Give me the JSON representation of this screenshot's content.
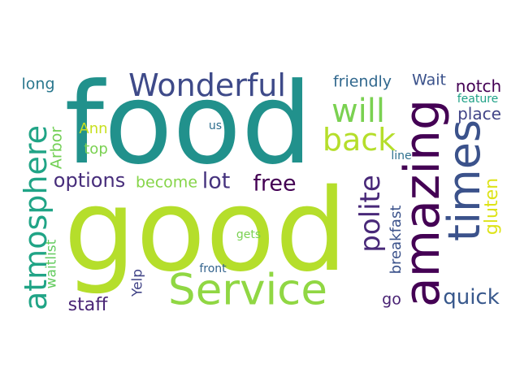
{
  "words": [
    {
      "id": "food",
      "text": "food",
      "color": "#21918c"
    },
    {
      "id": "good",
      "text": "good",
      "color": "#b5de2b"
    },
    {
      "id": "service",
      "text": "Service",
      "color": "#90d743"
    },
    {
      "id": "amazing",
      "text": "amazing",
      "color": "#440154"
    },
    {
      "id": "times",
      "text": "times",
      "color": "#3b528b"
    },
    {
      "id": "wonderful",
      "text": "Wonderful",
      "color": "#3e4a89"
    },
    {
      "id": "will",
      "text": "will",
      "color": "#7ad151"
    },
    {
      "id": "back",
      "text": "back",
      "color": "#b5de2b"
    },
    {
      "id": "atmosphere",
      "text": "atmosphere",
      "color": "#20a486"
    },
    {
      "id": "polite",
      "text": "polite",
      "color": "#482878"
    },
    {
      "id": "options",
      "text": "options",
      "color": "#472d7b"
    },
    {
      "id": "lot",
      "text": "lot",
      "color": "#46337e"
    },
    {
      "id": "free",
      "text": "free",
      "color": "#440154"
    },
    {
      "id": "quick",
      "text": "quick",
      "color": "#38588c"
    },
    {
      "id": "staff",
      "text": "staff",
      "color": "#482475"
    },
    {
      "id": "gluten",
      "text": "gluten",
      "color": "#dde318"
    },
    {
      "id": "friendly",
      "text": "friendly",
      "color": "#31688e"
    },
    {
      "id": "wait",
      "text": "Wait",
      "color": "#3b528b"
    },
    {
      "id": "notch",
      "text": "notch",
      "color": "#440154"
    },
    {
      "id": "place",
      "text": "place",
      "color": "#414487"
    },
    {
      "id": "long",
      "text": "long",
      "color": "#2a788e"
    },
    {
      "id": "arbor",
      "text": "Arbor",
      "color": "#73d056"
    },
    {
      "id": "ann",
      "text": "Ann",
      "color": "#c8e020"
    },
    {
      "id": "top",
      "text": "top",
      "color": "#7ad151"
    },
    {
      "id": "become",
      "text": "become",
      "color": "#86d549"
    },
    {
      "id": "us",
      "text": "us",
      "color": "#2e6e8e"
    },
    {
      "id": "feature",
      "text": "feature",
      "color": "#1fa187"
    },
    {
      "id": "line",
      "text": "line",
      "color": "#2d708e"
    },
    {
      "id": "breakfast",
      "text": "breakfast",
      "color": "#3b528b"
    },
    {
      "id": "waitlist",
      "text": "waitlist",
      "color": "#63cb5f"
    },
    {
      "id": "gets",
      "text": "gets",
      "color": "#7ad151"
    },
    {
      "id": "yelp",
      "text": "Yelp",
      "color": "#414487"
    },
    {
      "id": "front",
      "text": "front",
      "color": "#33638d"
    },
    {
      "id": "go",
      "text": "go",
      "color": "#482173"
    }
  ]
}
